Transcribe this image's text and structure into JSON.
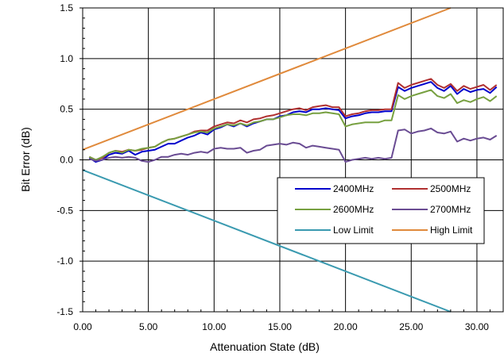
{
  "chart_data": {
    "type": "line",
    "xlabel": "Attenuation State (dB)",
    "ylabel": "Bit Error (dB)",
    "xlim": [
      0,
      32
    ],
    "ylim": [
      -1.5,
      1.5
    ],
    "x_ticks": [
      0,
      5,
      10,
      15,
      20,
      25,
      30
    ],
    "x_tick_labels": [
      "0.00",
      "5.00",
      "10.00",
      "15.00",
      "20.00",
      "25.00",
      "30.00"
    ],
    "y_ticks": [
      -1.5,
      -1.0,
      -0.5,
      0.0,
      0.5,
      1.0,
      1.5
    ],
    "y_tick_labels": [
      "-1.5",
      "-1.0",
      "-0.5",
      "0.0",
      "0.5",
      "1.0",
      "1.5"
    ],
    "grid": true,
    "legend_position": "lower-right inside plot",
    "series": [
      {
        "name": "2400MHz",
        "color": "#0000cc",
        "x": [
          0.5,
          1.0,
          1.5,
          2.0,
          2.5,
          3.0,
          3.5,
          4.0,
          4.5,
          5.0,
          5.5,
          6.0,
          6.5,
          7.0,
          7.5,
          8.0,
          8.5,
          9.0,
          9.5,
          10.0,
          10.5,
          11.0,
          11.5,
          12.0,
          12.5,
          13.0,
          13.5,
          14.0,
          14.5,
          15.0,
          15.5,
          16.0,
          16.5,
          17.0,
          17.5,
          18.0,
          18.5,
          19.0,
          19.5,
          20.0,
          20.5,
          21.0,
          21.5,
          22.0,
          22.5,
          23.0,
          23.5,
          24.0,
          24.5,
          25.0,
          25.5,
          26.0,
          26.5,
          27.0,
          27.5,
          28.0,
          28.5,
          29.0,
          29.5,
          30.0,
          30.5,
          31.0,
          31.5
        ],
        "y": [
          0.02,
          -0.02,
          0.0,
          0.05,
          0.07,
          0.06,
          0.09,
          0.05,
          0.08,
          0.09,
          0.1,
          0.13,
          0.16,
          0.16,
          0.19,
          0.22,
          0.24,
          0.27,
          0.25,
          0.3,
          0.32,
          0.35,
          0.33,
          0.36,
          0.33,
          0.36,
          0.38,
          0.4,
          0.4,
          0.43,
          0.44,
          0.47,
          0.48,
          0.47,
          0.5,
          0.5,
          0.51,
          0.5,
          0.49,
          0.41,
          0.43,
          0.44,
          0.46,
          0.47,
          0.47,
          0.48,
          0.48,
          0.72,
          0.68,
          0.71,
          0.73,
          0.75,
          0.77,
          0.71,
          0.68,
          0.73,
          0.65,
          0.7,
          0.67,
          0.69,
          0.7,
          0.66,
          0.72
        ]
      },
      {
        "name": "2500MHz",
        "color": "#b03030",
        "x": [
          0.5,
          1.0,
          1.5,
          2.0,
          2.5,
          3.0,
          3.5,
          4.0,
          4.5,
          5.0,
          5.5,
          6.0,
          6.5,
          7.0,
          7.5,
          8.0,
          8.5,
          9.0,
          9.5,
          10.0,
          10.5,
          11.0,
          11.5,
          12.0,
          12.5,
          13.0,
          13.5,
          14.0,
          14.5,
          15.0,
          15.5,
          16.0,
          16.5,
          17.0,
          17.5,
          18.0,
          18.5,
          19.0,
          19.5,
          20.0,
          20.5,
          21.0,
          21.5,
          22.0,
          22.5,
          23.0,
          23.5,
          24.0,
          24.5,
          25.0,
          25.5,
          26.0,
          26.5,
          27.0,
          27.5,
          28.0,
          28.5,
          29.0,
          29.5,
          30.0,
          30.5,
          31.0,
          31.5
        ],
        "y": [
          0.03,
          0.0,
          0.02,
          0.07,
          0.09,
          0.08,
          0.1,
          0.09,
          0.1,
          0.12,
          0.13,
          0.17,
          0.2,
          0.21,
          0.23,
          0.25,
          0.28,
          0.29,
          0.29,
          0.33,
          0.35,
          0.37,
          0.36,
          0.39,
          0.37,
          0.4,
          0.41,
          0.43,
          0.44,
          0.46,
          0.48,
          0.5,
          0.51,
          0.49,
          0.52,
          0.53,
          0.54,
          0.52,
          0.52,
          0.43,
          0.45,
          0.46,
          0.48,
          0.49,
          0.49,
          0.5,
          0.5,
          0.76,
          0.71,
          0.74,
          0.76,
          0.78,
          0.8,
          0.74,
          0.71,
          0.75,
          0.68,
          0.73,
          0.7,
          0.72,
          0.74,
          0.69,
          0.74
        ]
      },
      {
        "name": "2600MHz",
        "color": "#77a040",
        "x": [
          0.5,
          1.0,
          1.5,
          2.0,
          2.5,
          3.0,
          3.5,
          4.0,
          4.5,
          5.0,
          5.5,
          6.0,
          6.5,
          7.0,
          7.5,
          8.0,
          8.5,
          9.0,
          9.5,
          10.0,
          10.5,
          11.0,
          11.5,
          12.0,
          12.5,
          13.0,
          13.5,
          14.0,
          14.5,
          15.0,
          15.5,
          16.0,
          16.5,
          17.0,
          17.5,
          18.0,
          18.5,
          19.0,
          19.5,
          20.0,
          20.5,
          21.0,
          21.5,
          22.0,
          22.5,
          23.0,
          23.5,
          24.0,
          24.5,
          25.0,
          25.5,
          26.0,
          26.5,
          27.0,
          27.5,
          28.0,
          28.5,
          29.0,
          29.5,
          30.0,
          30.5,
          31.0,
          31.5
        ],
        "y": [
          0.03,
          0.0,
          0.03,
          0.07,
          0.09,
          0.07,
          0.1,
          0.09,
          0.11,
          0.12,
          0.13,
          0.17,
          0.2,
          0.21,
          0.23,
          0.25,
          0.27,
          0.28,
          0.27,
          0.31,
          0.33,
          0.35,
          0.34,
          0.36,
          0.34,
          0.37,
          0.38,
          0.4,
          0.4,
          0.42,
          0.44,
          0.45,
          0.45,
          0.44,
          0.46,
          0.46,
          0.47,
          0.46,
          0.45,
          0.33,
          0.35,
          0.36,
          0.37,
          0.37,
          0.37,
          0.39,
          0.39,
          0.64,
          0.6,
          0.63,
          0.65,
          0.67,
          0.69,
          0.63,
          0.61,
          0.65,
          0.56,
          0.59,
          0.57,
          0.6,
          0.62,
          0.58,
          0.63
        ]
      },
      {
        "name": "2700MHz",
        "color": "#6a4c93",
        "x": [
          0.5,
          1.0,
          1.5,
          2.0,
          2.5,
          3.0,
          3.5,
          4.0,
          4.5,
          5.0,
          5.5,
          6.0,
          6.5,
          7.0,
          7.5,
          8.0,
          8.5,
          9.0,
          9.5,
          10.0,
          10.5,
          11.0,
          11.5,
          12.0,
          12.5,
          13.0,
          13.5,
          14.0,
          14.5,
          15.0,
          15.5,
          16.0,
          16.5,
          17.0,
          17.5,
          18.0,
          18.5,
          19.0,
          19.5,
          20.0,
          20.5,
          21.0,
          21.5,
          22.0,
          22.5,
          23.0,
          23.5,
          24.0,
          24.5,
          25.0,
          25.5,
          26.0,
          26.5,
          27.0,
          27.5,
          28.0,
          28.5,
          29.0,
          29.5,
          30.0,
          30.5,
          31.0,
          31.5
        ],
        "y": [
          0.01,
          -0.01,
          0.0,
          0.02,
          0.03,
          0.02,
          0.03,
          0.02,
          -0.01,
          -0.02,
          0.0,
          0.03,
          0.03,
          0.05,
          0.06,
          0.05,
          0.07,
          0.08,
          0.07,
          0.11,
          0.12,
          0.11,
          0.11,
          0.12,
          0.07,
          0.09,
          0.1,
          0.14,
          0.15,
          0.16,
          0.15,
          0.17,
          0.16,
          0.12,
          0.14,
          0.13,
          0.12,
          0.11,
          0.1,
          -0.02,
          0.0,
          0.01,
          0.02,
          0.01,
          0.02,
          0.01,
          0.02,
          0.29,
          0.3,
          0.26,
          0.28,
          0.29,
          0.31,
          0.27,
          0.26,
          0.28,
          0.18,
          0.21,
          0.19,
          0.21,
          0.22,
          0.2,
          0.24
        ]
      },
      {
        "name": "Low Limit",
        "color": "#3a9ab0",
        "x": [
          0,
          28
        ],
        "y": [
          -0.1,
          -1.5
        ]
      },
      {
        "name": "High Limit",
        "color": "#e08a3c",
        "x": [
          0,
          28
        ],
        "y": [
          0.1,
          1.5
        ]
      }
    ]
  }
}
